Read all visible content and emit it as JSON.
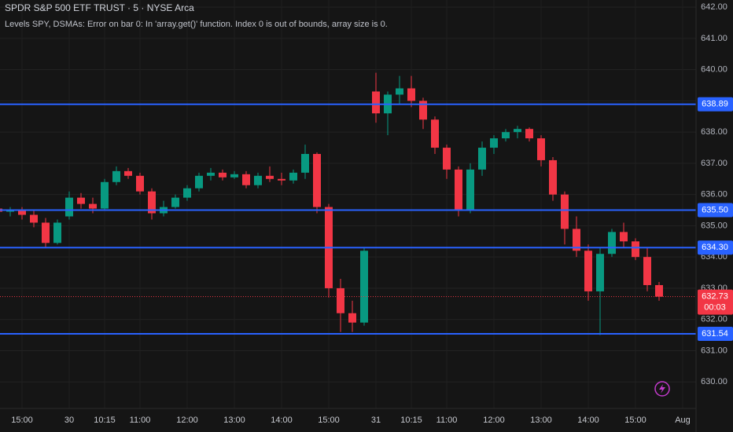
{
  "chart_data": {
    "type": "candlestick",
    "title": "SPDR S&P 500 ETF TRUST · 5 · NYSE Arca",
    "subtitle": "Levels SPY, DSMAs: Error on bar 0: In 'array.get()' function. Index 0 is out of bounds, array size is 0.",
    "categories": [
      null,
      null,
      "15:00",
      null,
      null,
      null,
      "30",
      null,
      null,
      "10:15",
      null,
      null,
      "11:00",
      null,
      null,
      null,
      "12:00",
      null,
      null,
      null,
      "13:00",
      null,
      null,
      null,
      "14:00",
      null,
      null,
      null,
      "15:00",
      null,
      null,
      null,
      "31",
      null,
      null,
      "10:15",
      null,
      null,
      "11:00",
      null,
      null,
      null,
      "12:00",
      null,
      null,
      null,
      "13:00",
      null,
      null,
      null,
      "14:00",
      null,
      null,
      null,
      "15:00",
      null,
      null,
      null,
      "Aug"
    ],
    "open": [
      635.55,
      635.45,
      635.5,
      635.35,
      635.1,
      634.45,
      635.3,
      635.9,
      635.7,
      635.55,
      636.4,
      636.75,
      636.6,
      636.1,
      635.4,
      635.6,
      635.9,
      636.2,
      636.6,
      636.7,
      636.55,
      636.65,
      636.3,
      636.6,
      636.5,
      636.45,
      636.7,
      637.3,
      635.6,
      633.0,
      632.2,
      631.9,
      639.3,
      638.6,
      639.2,
      639.4,
      639.0,
      638.4,
      637.5,
      636.8,
      635.5,
      636.8,
      637.5,
      637.8,
      638.0,
      638.1,
      637.8,
      637.1,
      636.0,
      634.9,
      634.2,
      632.9,
      634.1,
      634.8,
      634.5,
      634.0,
      633.1,
      null,
      null
    ],
    "high": [
      635.75,
      635.6,
      635.6,
      635.5,
      635.25,
      635.2,
      636.1,
      636.05,
      635.9,
      636.5,
      636.9,
      636.85,
      636.7,
      636.2,
      635.8,
      636.0,
      636.3,
      636.7,
      636.85,
      636.8,
      636.75,
      636.75,
      636.7,
      636.9,
      636.7,
      636.8,
      637.6,
      637.35,
      635.7,
      633.3,
      632.6,
      634.3,
      639.9,
      639.3,
      639.8,
      639.8,
      639.1,
      638.5,
      637.6,
      636.9,
      637.0,
      637.7,
      637.9,
      638.1,
      638.2,
      638.15,
      637.9,
      637.2,
      636.1,
      635.3,
      634.4,
      634.3,
      634.9,
      635.1,
      634.6,
      634.3,
      633.2,
      null,
      null
    ],
    "low": [
      635.35,
      635.3,
      635.2,
      634.95,
      634.3,
      634.4,
      635.2,
      635.55,
      635.4,
      635.5,
      636.3,
      636.5,
      636.0,
      635.2,
      635.3,
      635.55,
      635.8,
      636.1,
      636.45,
      636.45,
      636.5,
      636.2,
      636.2,
      636.4,
      636.3,
      636.35,
      636.5,
      635.4,
      632.7,
      631.6,
      631.6,
      631.8,
      638.3,
      637.9,
      638.9,
      638.8,
      638.1,
      637.3,
      636.5,
      635.3,
      635.4,
      636.6,
      637.3,
      637.7,
      637.8,
      637.7,
      636.9,
      635.8,
      634.4,
      634.0,
      632.6,
      631.5,
      634.0,
      634.3,
      633.9,
      632.9,
      632.6,
      null,
      null
    ],
    "close": [
      635.45,
      635.5,
      635.35,
      635.1,
      634.45,
      635.1,
      635.9,
      635.7,
      635.55,
      636.4,
      636.75,
      636.6,
      636.1,
      635.4,
      635.6,
      635.9,
      636.2,
      636.6,
      636.7,
      636.55,
      636.65,
      636.3,
      636.6,
      636.5,
      636.45,
      636.7,
      637.3,
      635.6,
      633.0,
      632.2,
      631.9,
      634.2,
      638.6,
      639.2,
      639.4,
      639.0,
      638.4,
      637.5,
      636.8,
      635.5,
      636.8,
      637.5,
      637.8,
      638.0,
      638.1,
      637.8,
      637.1,
      636.0,
      634.9,
      634.2,
      632.9,
      634.1,
      634.8,
      634.5,
      634.0,
      633.1,
      632.73,
      null,
      null
    ],
    "up_color": "#089981",
    "down_color": "#f23645",
    "ylim": [
      629.15,
      642.23
    ],
    "yticks": [
      {
        "value": 630,
        "label": "630.00"
      },
      {
        "value": 631,
        "label": "631.00"
      },
      {
        "value": 632,
        "label": "632.00"
      },
      {
        "value": 633,
        "label": "633.00"
      },
      {
        "value": 634,
        "label": "634.00"
      },
      {
        "value": 635,
        "label": "635.00"
      },
      {
        "value": 636,
        "label": "636.00"
      },
      {
        "value": 637,
        "label": "637.00"
      },
      {
        "value": 638,
        "label": "638.00"
      },
      {
        "value": 639,
        "label": "639.00"
      },
      {
        "value": 640,
        "label": "640.00"
      },
      {
        "value": 641,
        "label": "641.00"
      },
      {
        "value": 642,
        "label": "642.00"
      }
    ],
    "grid": true,
    "levels": {
      "values": [
        638.89,
        635.5,
        634.3,
        631.54
      ],
      "value_labels": [
        "638.89",
        "635.50",
        "634.30",
        "631.54"
      ],
      "color": "#2962ff"
    },
    "countdown": "00:03"
  }
}
